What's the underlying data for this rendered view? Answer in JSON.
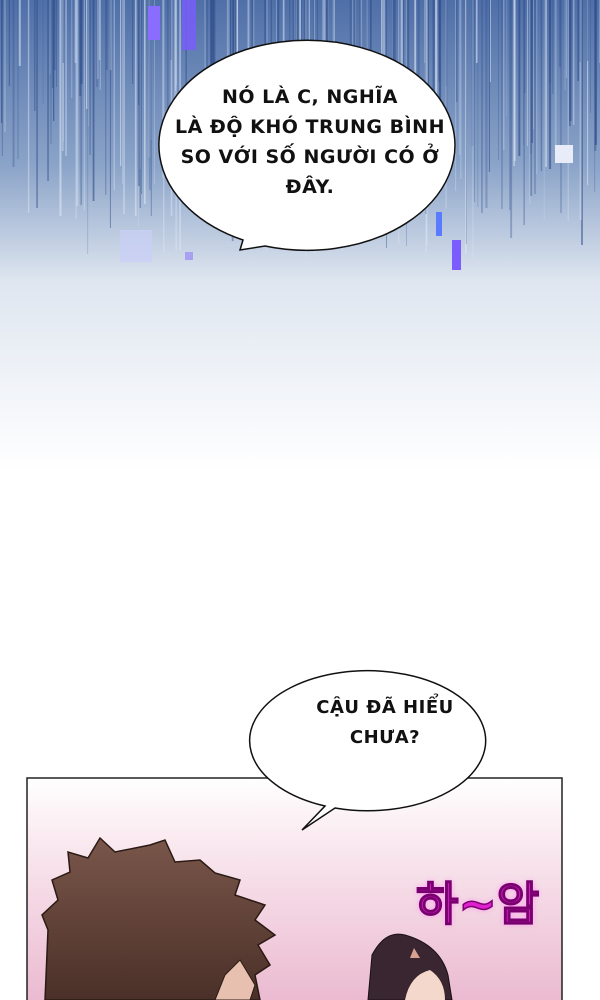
{
  "bubbles": [
    {
      "lines": [
        "NÓ LÀ C, NGHĨA",
        "LÀ ĐỘ KHÓ TRUNG BÌNH",
        "SO VỚI SỐ NGƯỜI CÓ Ở",
        "ĐÂY."
      ]
    },
    {
      "lines": [
        "CẬU ĐÃ HIỂU",
        "CHƯA?"
      ]
    }
  ],
  "sound_effect": "하~암",
  "colors": {
    "sky_blue": "#6d86b8",
    "accent_purple": "#7b5cff",
    "panel_pink": "#f2c9da",
    "sfx_magenta": "#e020d0",
    "hair_brown": "#6b4a40"
  }
}
